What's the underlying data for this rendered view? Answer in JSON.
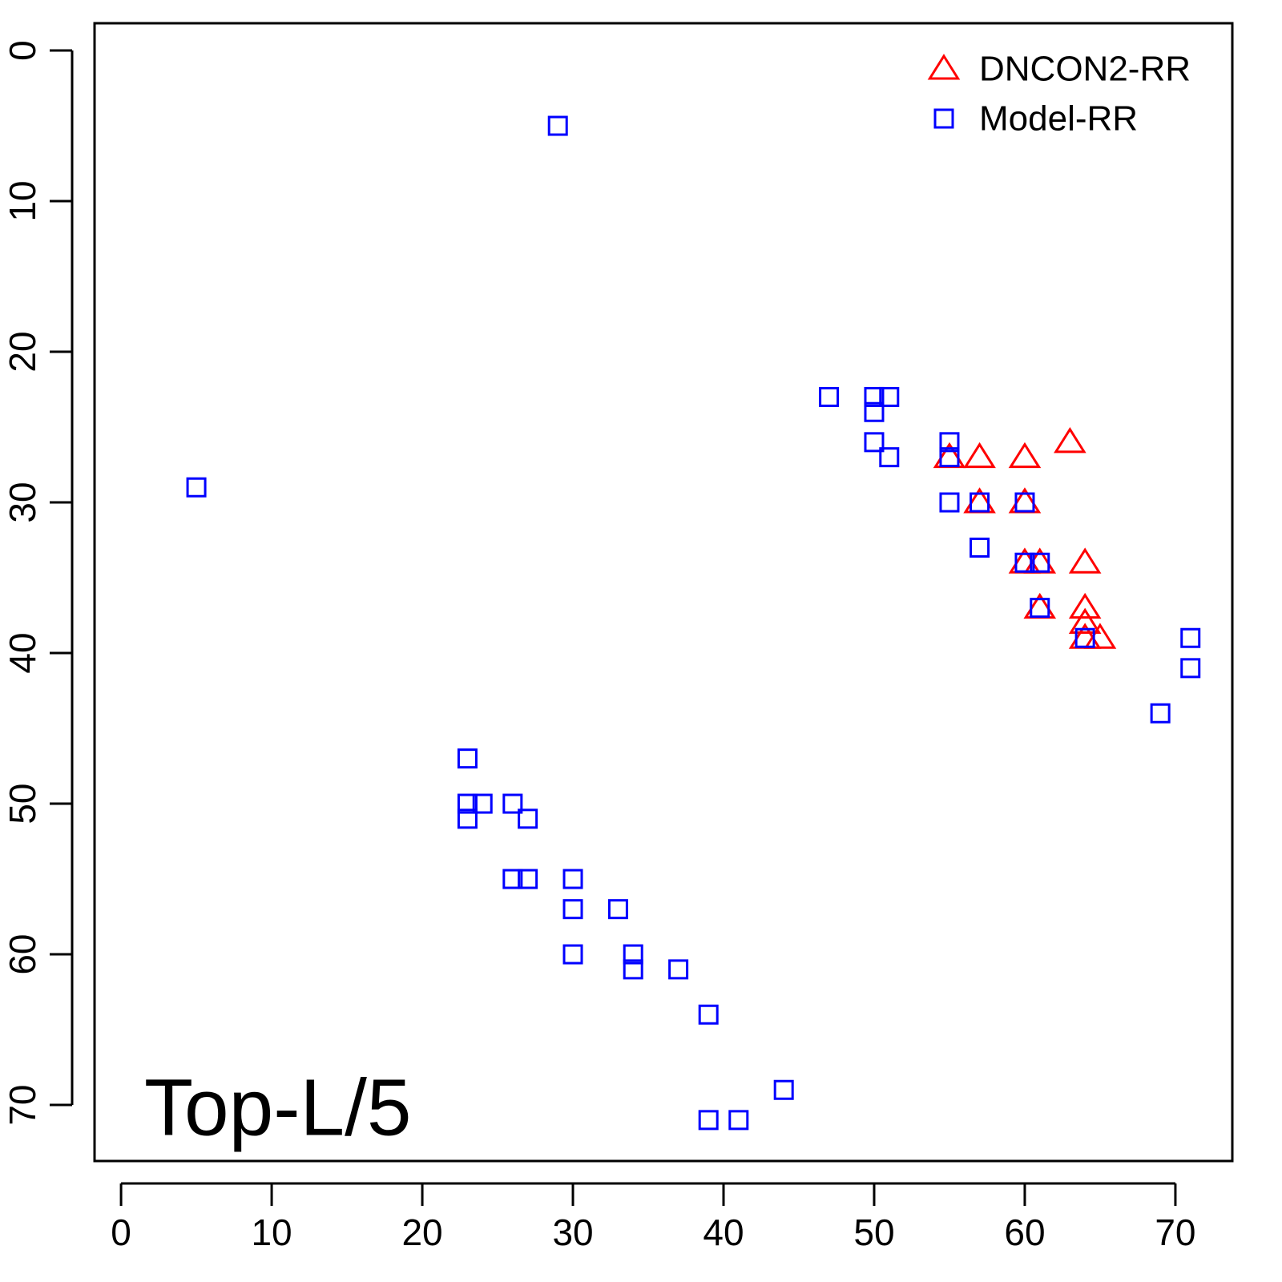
{
  "chart_data": {
    "type": "scatter",
    "annotation": "Top-L/5",
    "xlim": [
      -1.76,
      73.78
    ],
    "ylim": [
      -1.81,
      73.72
    ],
    "y_inverted": true,
    "xticks": [
      0,
      10,
      20,
      30,
      40,
      50,
      60,
      70
    ],
    "yticks": [
      0,
      10,
      20,
      30,
      40,
      50,
      60,
      70
    ],
    "legend": "top-right",
    "series": [
      {
        "name": "DNCON2-RR",
        "color": "#ff0000",
        "marker": "triangle",
        "x": [
          63,
          55,
          57,
          60,
          57,
          60,
          60,
          61,
          64,
          61,
          64,
          64,
          64,
          65
        ],
        "values": [
          26,
          27,
          27,
          27,
          30,
          30,
          34,
          34,
          34,
          37,
          37,
          38,
          39,
          39
        ]
      },
      {
        "name": "Model-RR",
        "color": "#0000ff",
        "marker": "square",
        "x": [
          29,
          5,
          47,
          50,
          51,
          50,
          50,
          51,
          55,
          55,
          55,
          57,
          60,
          57,
          60,
          61,
          61,
          64,
          71,
          71,
          69,
          23,
          23,
          24,
          26,
          23,
          27,
          26,
          27,
          30,
          30,
          33,
          30,
          34,
          34,
          37,
          39,
          44,
          39,
          41
        ],
        "values": [
          5,
          29,
          23,
          23,
          23,
          24,
          26,
          27,
          26,
          27,
          30,
          30,
          30,
          33,
          34,
          34,
          37,
          39,
          39,
          41,
          44,
          47,
          50,
          50,
          50,
          51,
          51,
          55,
          55,
          55,
          57,
          57,
          60,
          60,
          61,
          61,
          64,
          69,
          71,
          71
        ]
      }
    ]
  }
}
